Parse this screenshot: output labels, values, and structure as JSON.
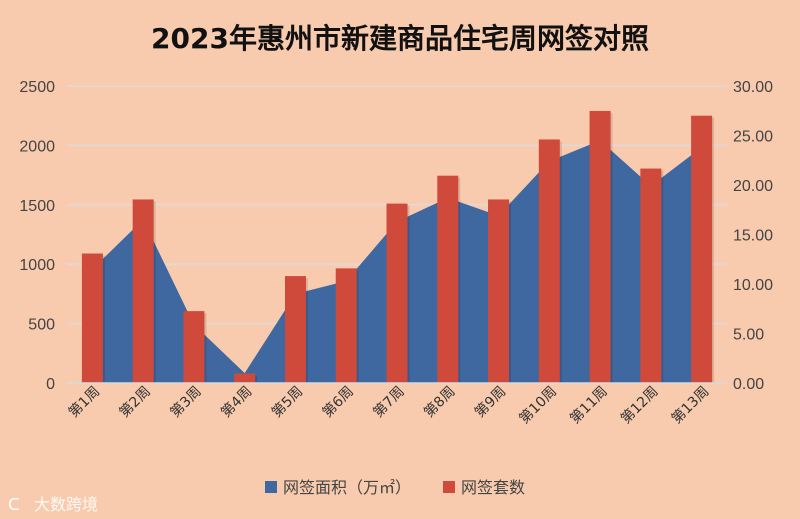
{
  "chart_data": {
    "type": "bar",
    "title": "2023年惠州市新建商品住宅周网签对照",
    "categories": [
      "第1周",
      "第2周",
      "第3周",
      "第4周",
      "第5周",
      "第6周",
      "第7周",
      "第8周",
      "第9周",
      "第10周",
      "第11周",
      "第12周",
      "第13周"
    ],
    "series": [
      {
        "name": "网签面积（万㎡）",
        "type": "area",
        "axis": "right",
        "color": "#3f67a0",
        "values": [
          11.5,
          16.5,
          5.9,
          1.0,
          9.0,
          10.3,
          16.3,
          18.7,
          16.9,
          22.4,
          24.5,
          19.9,
          23.8
        ]
      },
      {
        "name": "网签套数",
        "type": "bar",
        "axis": "left",
        "color": "#cf4a3a",
        "values": [
          1090,
          1545,
          605,
          80,
          900,
          965,
          1510,
          1745,
          1545,
          2050,
          2290,
          1805,
          2250
        ]
      }
    ],
    "left_axis": {
      "ylim": [
        0,
        2500
      ],
      "ticks": [
        "0",
        "500",
        "1000",
        "1500",
        "2000",
        "2500"
      ]
    },
    "right_axis": {
      "ylim": [
        0,
        30
      ],
      "ticks": [
        "0.00",
        "5.00",
        "10.00",
        "15.00",
        "20.00",
        "25.00",
        "30.00"
      ]
    },
    "grid": true,
    "legend_position": "bottom"
  },
  "watermark": "大数跨境"
}
